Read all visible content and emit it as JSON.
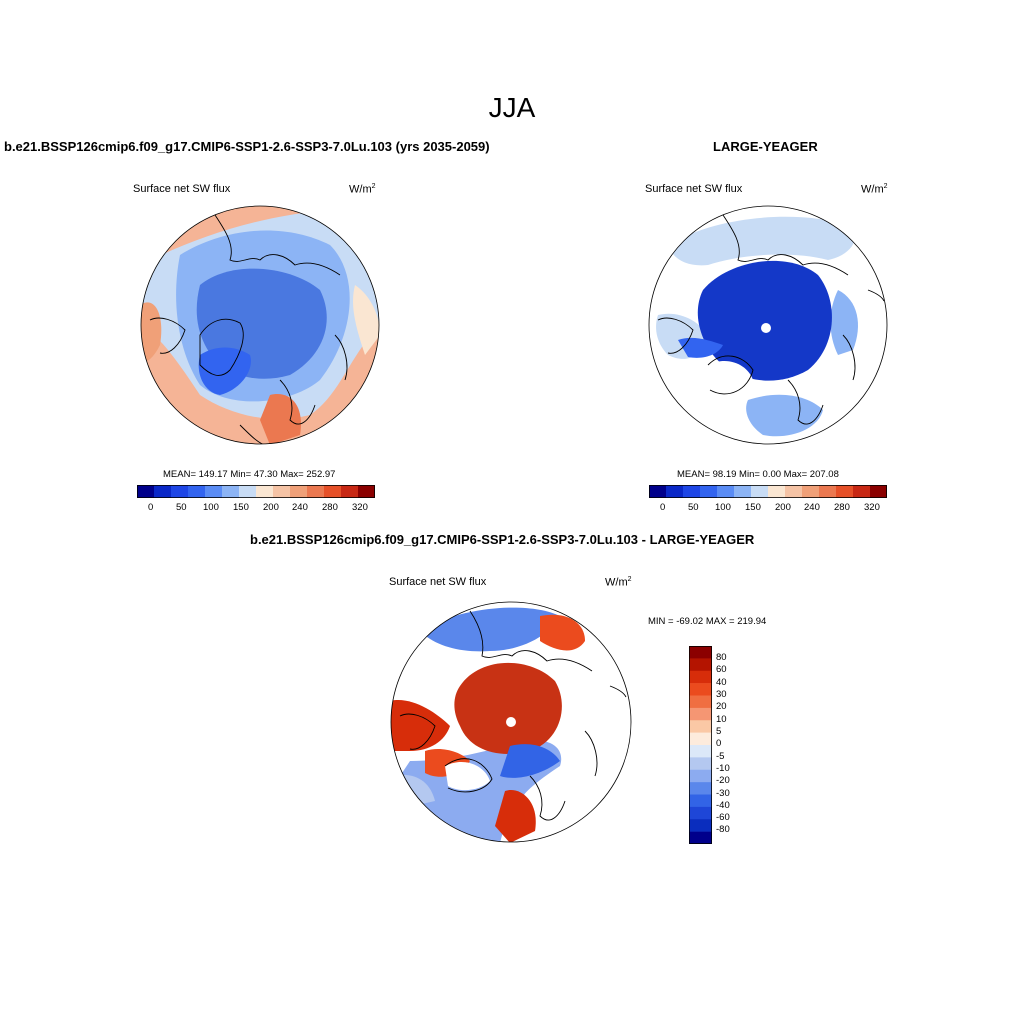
{
  "season": "JJA",
  "panels": {
    "model": {
      "title": "b.e21.BSSP126cmip6.f09_g17.CMIP6-SSP1-2.6-SSP3-7.0Lu.103 (yrs 2035-2059)",
      "variable": "Surface net SW flux",
      "units": "W/m",
      "units_sup": "2",
      "stats": "MEAN= 149.17  Min=  47.30  Max= 252.97",
      "colorbar_labels": [
        "0",
        "50",
        "100",
        "150",
        "200",
        "240",
        "280",
        "320"
      ]
    },
    "obs": {
      "title": "LARGE-YEAGER",
      "variable": "Surface net SW flux",
      "units": "W/m",
      "units_sup": "2",
      "stats": "MEAN=  98.19  Min=   0.00  Max= 207.08",
      "colorbar_labels": [
        "0",
        "50",
        "100",
        "150",
        "200",
        "240",
        "280",
        "320"
      ]
    },
    "diff": {
      "title": "b.e21.BSSP126cmip6.f09_g17.CMIP6-SSP1-2.6-SSP3-7.0Lu.103 - LARGE-YEAGER",
      "variable": "Surface net SW flux",
      "units": "W/m",
      "units_sup": "2",
      "minmax": "MIN = -69.02 MAX = 219.94",
      "colorbar_labels": [
        "80",
        "60",
        "40",
        "30",
        "20",
        "10",
        "5",
        "0",
        "-5",
        "-10",
        "-20",
        "-30",
        "-40",
        "-60",
        "-80"
      ]
    }
  },
  "colors": {
    "abs_scale": [
      "#00008b",
      "#0a28c8",
      "#1e46e6",
      "#3264f0",
      "#5a8cf5",
      "#8cb4f5",
      "#c8dcf5",
      "#fae6d2",
      "#f5c3a5",
      "#f0a078",
      "#eb7850",
      "#e65028",
      "#c82814",
      "#8b0000"
    ],
    "diff_scale": [
      "#8b0000",
      "#b41400",
      "#d72d0a",
      "#eb4b1e",
      "#f06e41",
      "#f59673",
      "#fac8a5",
      "#fdebdc",
      "#dce8f8",
      "#b4c8f0",
      "#8cabf0",
      "#5a87eb",
      "#3264e6",
      "#1e46d7",
      "#0a2dbe",
      "#00008b"
    ],
    "model_ocean": "#4a78e0",
    "model_land": "#a8c8f5",
    "model_warm": "#f5b496",
    "obs_ice": "#1438c8",
    "diff_ice": "#c83214"
  }
}
